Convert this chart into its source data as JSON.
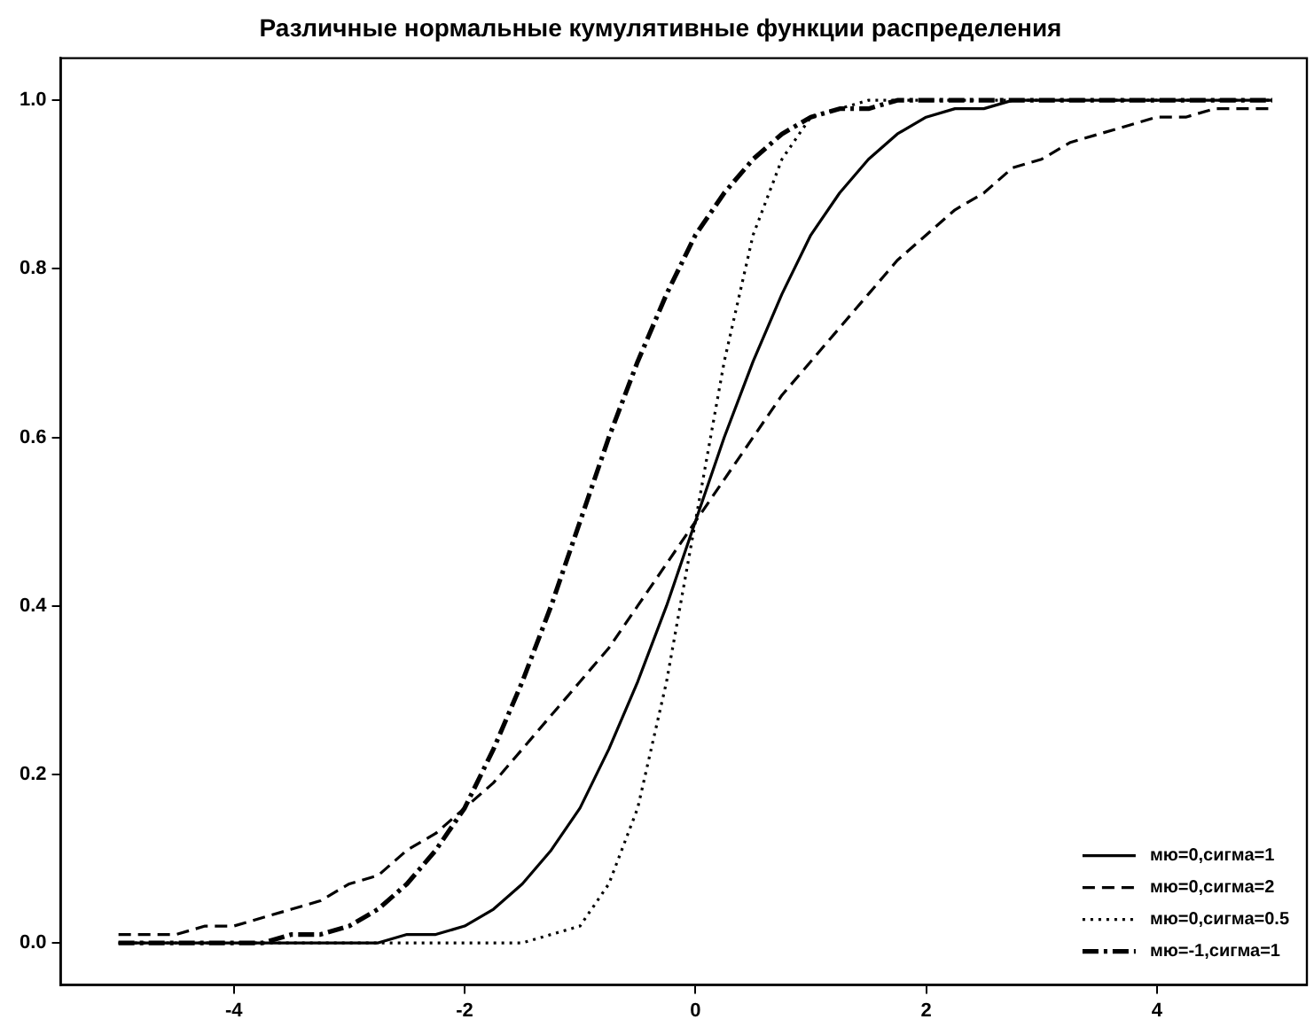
{
  "chart_data": {
    "type": "line",
    "title": "Различные нормальные кумулятивные функции распределения",
    "x": [
      -5,
      -4.75,
      -4.5,
      -4.25,
      -4,
      -3.75,
      -3.5,
      -3.25,
      -3,
      -2.75,
      -2.5,
      -2.25,
      -2,
      -1.75,
      -1.5,
      -1.25,
      -1,
      -0.75,
      -0.5,
      -0.25,
      0,
      0.25,
      0.5,
      0.75,
      1,
      1.25,
      1.5,
      1.75,
      2,
      2.25,
      2.5,
      2.75,
      3,
      3.25,
      3.5,
      3.75,
      4,
      4.25,
      4.5,
      4.75,
      5
    ],
    "series": [
      {
        "name": "мю=0,сигма=1",
        "color": "#000000",
        "line_style": "solid",
        "values": [
          0,
          0,
          0,
          0,
          0,
          0,
          0,
          0,
          0,
          0,
          0.01,
          0.01,
          0.02,
          0.04,
          0.07,
          0.11,
          0.16,
          0.23,
          0.31,
          0.4,
          0.5,
          0.6,
          0.69,
          0.77,
          0.84,
          0.89,
          0.93,
          0.96,
          0.98,
          0.99,
          0.99,
          1,
          1,
          1,
          1,
          1,
          1,
          1,
          1,
          1,
          1
        ]
      },
      {
        "name": "мю=0,сигма=2",
        "color": "#000000",
        "line_style": "dashed",
        "values": [
          0.01,
          0.01,
          0.01,
          0.02,
          0.02,
          0.03,
          0.04,
          0.05,
          0.07,
          0.08,
          0.11,
          0.13,
          0.16,
          0.19,
          0.23,
          0.27,
          0.31,
          0.35,
          0.4,
          0.45,
          0.5,
          0.55,
          0.6,
          0.65,
          0.69,
          0.73,
          0.77,
          0.81,
          0.84,
          0.87,
          0.89,
          0.92,
          0.93,
          0.95,
          0.96,
          0.97,
          0.98,
          0.98,
          0.99,
          0.99,
          0.99
        ]
      },
      {
        "name": "мю=0,сигма=0.5",
        "color": "#000000",
        "line_style": "dotted",
        "values": [
          0,
          0,
          0,
          0,
          0,
          0,
          0,
          0,
          0,
          0,
          0,
          0,
          0,
          0,
          0,
          0.01,
          0.02,
          0.07,
          0.16,
          0.31,
          0.5,
          0.69,
          0.84,
          0.93,
          0.98,
          0.99,
          1,
          1,
          1,
          1,
          1,
          1,
          1,
          1,
          1,
          1,
          1,
          1,
          1,
          1,
          1
        ]
      },
      {
        "name": "мю=-1,сигма=1",
        "color": "#000000",
        "line_style": "dashdot",
        "values": [
          0,
          0,
          0,
          0,
          0,
          0,
          0.01,
          0.01,
          0.02,
          0.04,
          0.07,
          0.11,
          0.16,
          0.23,
          0.31,
          0.4,
          0.5,
          0.6,
          0.69,
          0.77,
          0.84,
          0.89,
          0.93,
          0.96,
          0.98,
          0.99,
          0.99,
          1,
          1,
          1,
          1,
          1,
          1,
          1,
          1,
          1,
          1,
          1,
          1,
          1,
          1
        ]
      }
    ],
    "xlim": [
      -5.5,
      5.3
    ],
    "ylim": [
      -0.05,
      1.05
    ],
    "xticks": [
      -4,
      -2,
      0,
      2,
      4
    ],
    "yticks": [
      {
        "value": 0,
        "label": "0.0"
      },
      {
        "value": 0.2,
        "label": "0.2"
      },
      {
        "value": 0.4,
        "label": "0.4"
      },
      {
        "value": 0.6,
        "label": "0.6"
      },
      {
        "value": 0.8,
        "label": "0.8"
      },
      {
        "value": 1,
        "label": "1.0"
      }
    ],
    "grid": false,
    "legend": "bottom right",
    "marker": "none"
  }
}
